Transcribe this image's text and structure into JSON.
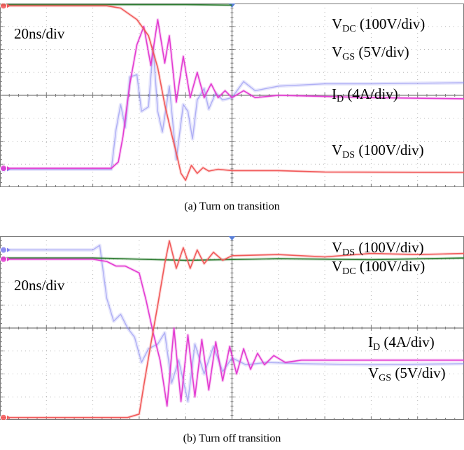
{
  "chart_data": [
    {
      "type": "line",
      "title": "",
      "caption": "(a) Turn on transition",
      "timebase": "20ns/div",
      "divisions": {
        "x": 10,
        "y": 8
      },
      "grid": true,
      "labels": [
        {
          "base": "V",
          "sub": "DC",
          "rest": " (100V/div)"
        },
        {
          "base": "V",
          "sub": "GS",
          "rest": " (5V/div)"
        },
        {
          "base": "I",
          "sub": "D",
          "rest": " (4A/div)"
        },
        {
          "base": "V",
          "sub": "DS",
          "rest": " (100V/div)"
        }
      ],
      "series": [
        {
          "name": "VDC",
          "color": "#2e7d32",
          "points": [
            [
              0,
              7.95
            ],
            [
              2,
              7.95
            ],
            [
              4,
              7.95
            ],
            [
              6,
              7.95
            ],
            [
              8,
              7.95
            ],
            [
              10,
              7.93
            ]
          ]
        },
        {
          "name": "VDS",
          "color": "#f15a5a",
          "points": [
            [
              0,
              7.9
            ],
            [
              4.6,
              7.9
            ],
            [
              5.2,
              7.8
            ],
            [
              5.9,
              7.3
            ],
            [
              6.4,
              6.6
            ],
            [
              6.8,
              5.2
            ],
            [
              7.1,
              3.6
            ],
            [
              7.4,
              2.3
            ],
            [
              7.6,
              1.5
            ],
            [
              7.8,
              0.6
            ],
            [
              8.0,
              0.3
            ],
            [
              8.25,
              0.95
            ],
            [
              8.5,
              0.6
            ],
            [
              8.75,
              0.85
            ],
            [
              9.0,
              0.7
            ],
            [
              9.4,
              0.78
            ],
            [
              10,
              0.72
            ],
            [
              12,
              0.72
            ],
            [
              14,
              0.66
            ],
            [
              20,
              0.64
            ]
          ]
        },
        {
          "name": "VGS",
          "color": "#7f7fef",
          "points": [
            [
              0,
              0.78
            ],
            [
              4.8,
              0.78
            ],
            [
              5.0,
              2.5
            ],
            [
              5.2,
              3.6
            ],
            [
              5.4,
              2.6
            ],
            [
              5.6,
              4.8
            ],
            [
              5.9,
              4.9
            ],
            [
              6.1,
              3.3
            ],
            [
              6.4,
              3.5
            ],
            [
              6.6,
              6.1
            ],
            [
              6.8,
              3.3
            ],
            [
              7.0,
              2.4
            ],
            [
              7.3,
              4.4
            ],
            [
              7.6,
              1.2
            ],
            [
              7.9,
              3.6
            ],
            [
              8.1,
              3.3
            ],
            [
              8.3,
              2.1
            ],
            [
              8.5,
              3.8
            ],
            [
              8.8,
              4.3
            ],
            [
              9.0,
              3.4
            ],
            [
              9.3,
              4.1
            ],
            [
              9.6,
              3.8
            ],
            [
              10,
              3.9
            ],
            [
              10.5,
              4.6
            ],
            [
              11,
              4.2
            ],
            [
              12,
              4.4
            ],
            [
              14,
              4.5
            ],
            [
              16,
              4.5
            ],
            [
              20,
              4.55
            ]
          ]
        },
        {
          "name": "ID",
          "color": "#e33cd2",
          "points": [
            [
              0,
              0.82
            ],
            [
              4.8,
              0.82
            ],
            [
              5.1,
              1.1
            ],
            [
              5.3,
              2.2
            ],
            [
              5.6,
              4.5
            ],
            [
              5.9,
              6.2
            ],
            [
              6.2,
              7.0
            ],
            [
              6.5,
              5.3
            ],
            [
              6.8,
              7.3
            ],
            [
              7.1,
              5.4
            ],
            [
              7.3,
              6.6
            ],
            [
              7.6,
              3.7
            ],
            [
              7.9,
              5.7
            ],
            [
              8.2,
              3.9
            ],
            [
              8.5,
              5.0
            ],
            [
              8.8,
              3.9
            ],
            [
              9.1,
              4.5
            ],
            [
              9.4,
              3.9
            ],
            [
              9.7,
              4.2
            ],
            [
              10,
              3.9
            ],
            [
              10.5,
              4.2
            ],
            [
              11,
              3.9
            ],
            [
              12,
              4.0
            ],
            [
              14,
              3.95
            ],
            [
              16,
              3.9
            ],
            [
              20,
              3.85
            ]
          ]
        }
      ]
    },
    {
      "type": "line",
      "title": "",
      "caption": "(b) Turn off transition",
      "timebase": "20ns/div",
      "divisions": {
        "x": 10,
        "y": 8
      },
      "grid": true,
      "labels": [
        {
          "base": "V",
          "sub": "DS",
          "rest": " (100V/div)"
        },
        {
          "base": "V",
          "sub": "DC",
          "rest": " (100V/div)"
        },
        {
          "base": "I",
          "sub": "D",
          "rest": " (4A/div)"
        },
        {
          "base": "V",
          "sub": "GS",
          "rest": " (5V/div)"
        }
      ],
      "series": [
        {
          "name": "VDC",
          "color": "#2e7d32",
          "points": [
            [
              0,
              7.05
            ],
            [
              4,
              7.05
            ],
            [
              8,
              6.95
            ],
            [
              12,
              7.02
            ],
            [
              16,
              6.98
            ],
            [
              20,
              7.05
            ]
          ]
        },
        {
          "name": "VDS",
          "color": "#f15a5a",
          "points": [
            [
              0,
              0.1
            ],
            [
              5.5,
              0.1
            ],
            [
              6.0,
              0.25
            ],
            [
              6.2,
              1.5
            ],
            [
              6.5,
              3.3
            ],
            [
              6.8,
              5.0
            ],
            [
              7.1,
              6.8
            ],
            [
              7.3,
              7.8
            ],
            [
              7.6,
              6.6
            ],
            [
              7.9,
              7.5
            ],
            [
              8.2,
              6.6
            ],
            [
              8.5,
              7.4
            ],
            [
              8.8,
              6.8
            ],
            [
              9.2,
              7.3
            ],
            [
              9.6,
              6.95
            ],
            [
              10,
              7.15
            ],
            [
              12,
              7.2
            ],
            [
              14,
              7.1
            ],
            [
              16,
              7.25
            ],
            [
              18,
              7.2
            ],
            [
              20,
              7.25
            ]
          ]
        },
        {
          "name": "VGS",
          "color": "#7f7fef",
          "points": [
            [
              0,
              7.4
            ],
            [
              4.0,
              7.4
            ],
            [
              4.3,
              7.6
            ],
            [
              4.6,
              5.3
            ],
            [
              4.9,
              4.3
            ],
            [
              5.2,
              4.6
            ],
            [
              5.5,
              4.0
            ],
            [
              5.8,
              3.6
            ],
            [
              6.1,
              2.5
            ],
            [
              6.4,
              3.1
            ],
            [
              6.8,
              3.3
            ],
            [
              7.1,
              3.8
            ],
            [
              7.4,
              1.6
            ],
            [
              7.7,
              2.6
            ],
            [
              8.1,
              0.8
            ],
            [
              8.4,
              3.3
            ],
            [
              8.8,
              2.0
            ],
            [
              9.2,
              3.2
            ],
            [
              9.6,
              2.1
            ],
            [
              10,
              2.7
            ],
            [
              10.6,
              2.4
            ],
            [
              11.5,
              2.5
            ],
            [
              13,
              2.45
            ],
            [
              16,
              2.4
            ],
            [
              20,
              2.45
            ]
          ]
        },
        {
          "name": "ID",
          "color": "#e33cd2",
          "points": [
            [
              0,
              7.0
            ],
            [
              4.0,
              7.0
            ],
            [
              4.6,
              6.9
            ],
            [
              5.0,
              6.7
            ],
            [
              5.4,
              6.7
            ],
            [
              6.0,
              6.4
            ],
            [
              6.3,
              5.2
            ],
            [
              6.6,
              3.8
            ],
            [
              6.9,
              2.6
            ],
            [
              7.2,
              0.6
            ],
            [
              7.5,
              4.0
            ],
            [
              7.8,
              0.8
            ],
            [
              8.1,
              3.7
            ],
            [
              8.4,
              1.0
            ],
            [
              8.7,
              3.5
            ],
            [
              9.0,
              1.3
            ],
            [
              9.3,
              3.4
            ],
            [
              9.6,
              1.7
            ],
            [
              9.9,
              3.2
            ],
            [
              10.2,
              2.0
            ],
            [
              10.5,
              3.1
            ],
            [
              10.8,
              2.2
            ],
            [
              11.1,
              2.9
            ],
            [
              11.4,
              2.4
            ],
            [
              11.8,
              2.8
            ],
            [
              12.3,
              2.5
            ],
            [
              13,
              2.6
            ],
            [
              14,
              2.6
            ],
            [
              16,
              2.6
            ],
            [
              20,
              2.6
            ]
          ]
        }
      ]
    }
  ]
}
